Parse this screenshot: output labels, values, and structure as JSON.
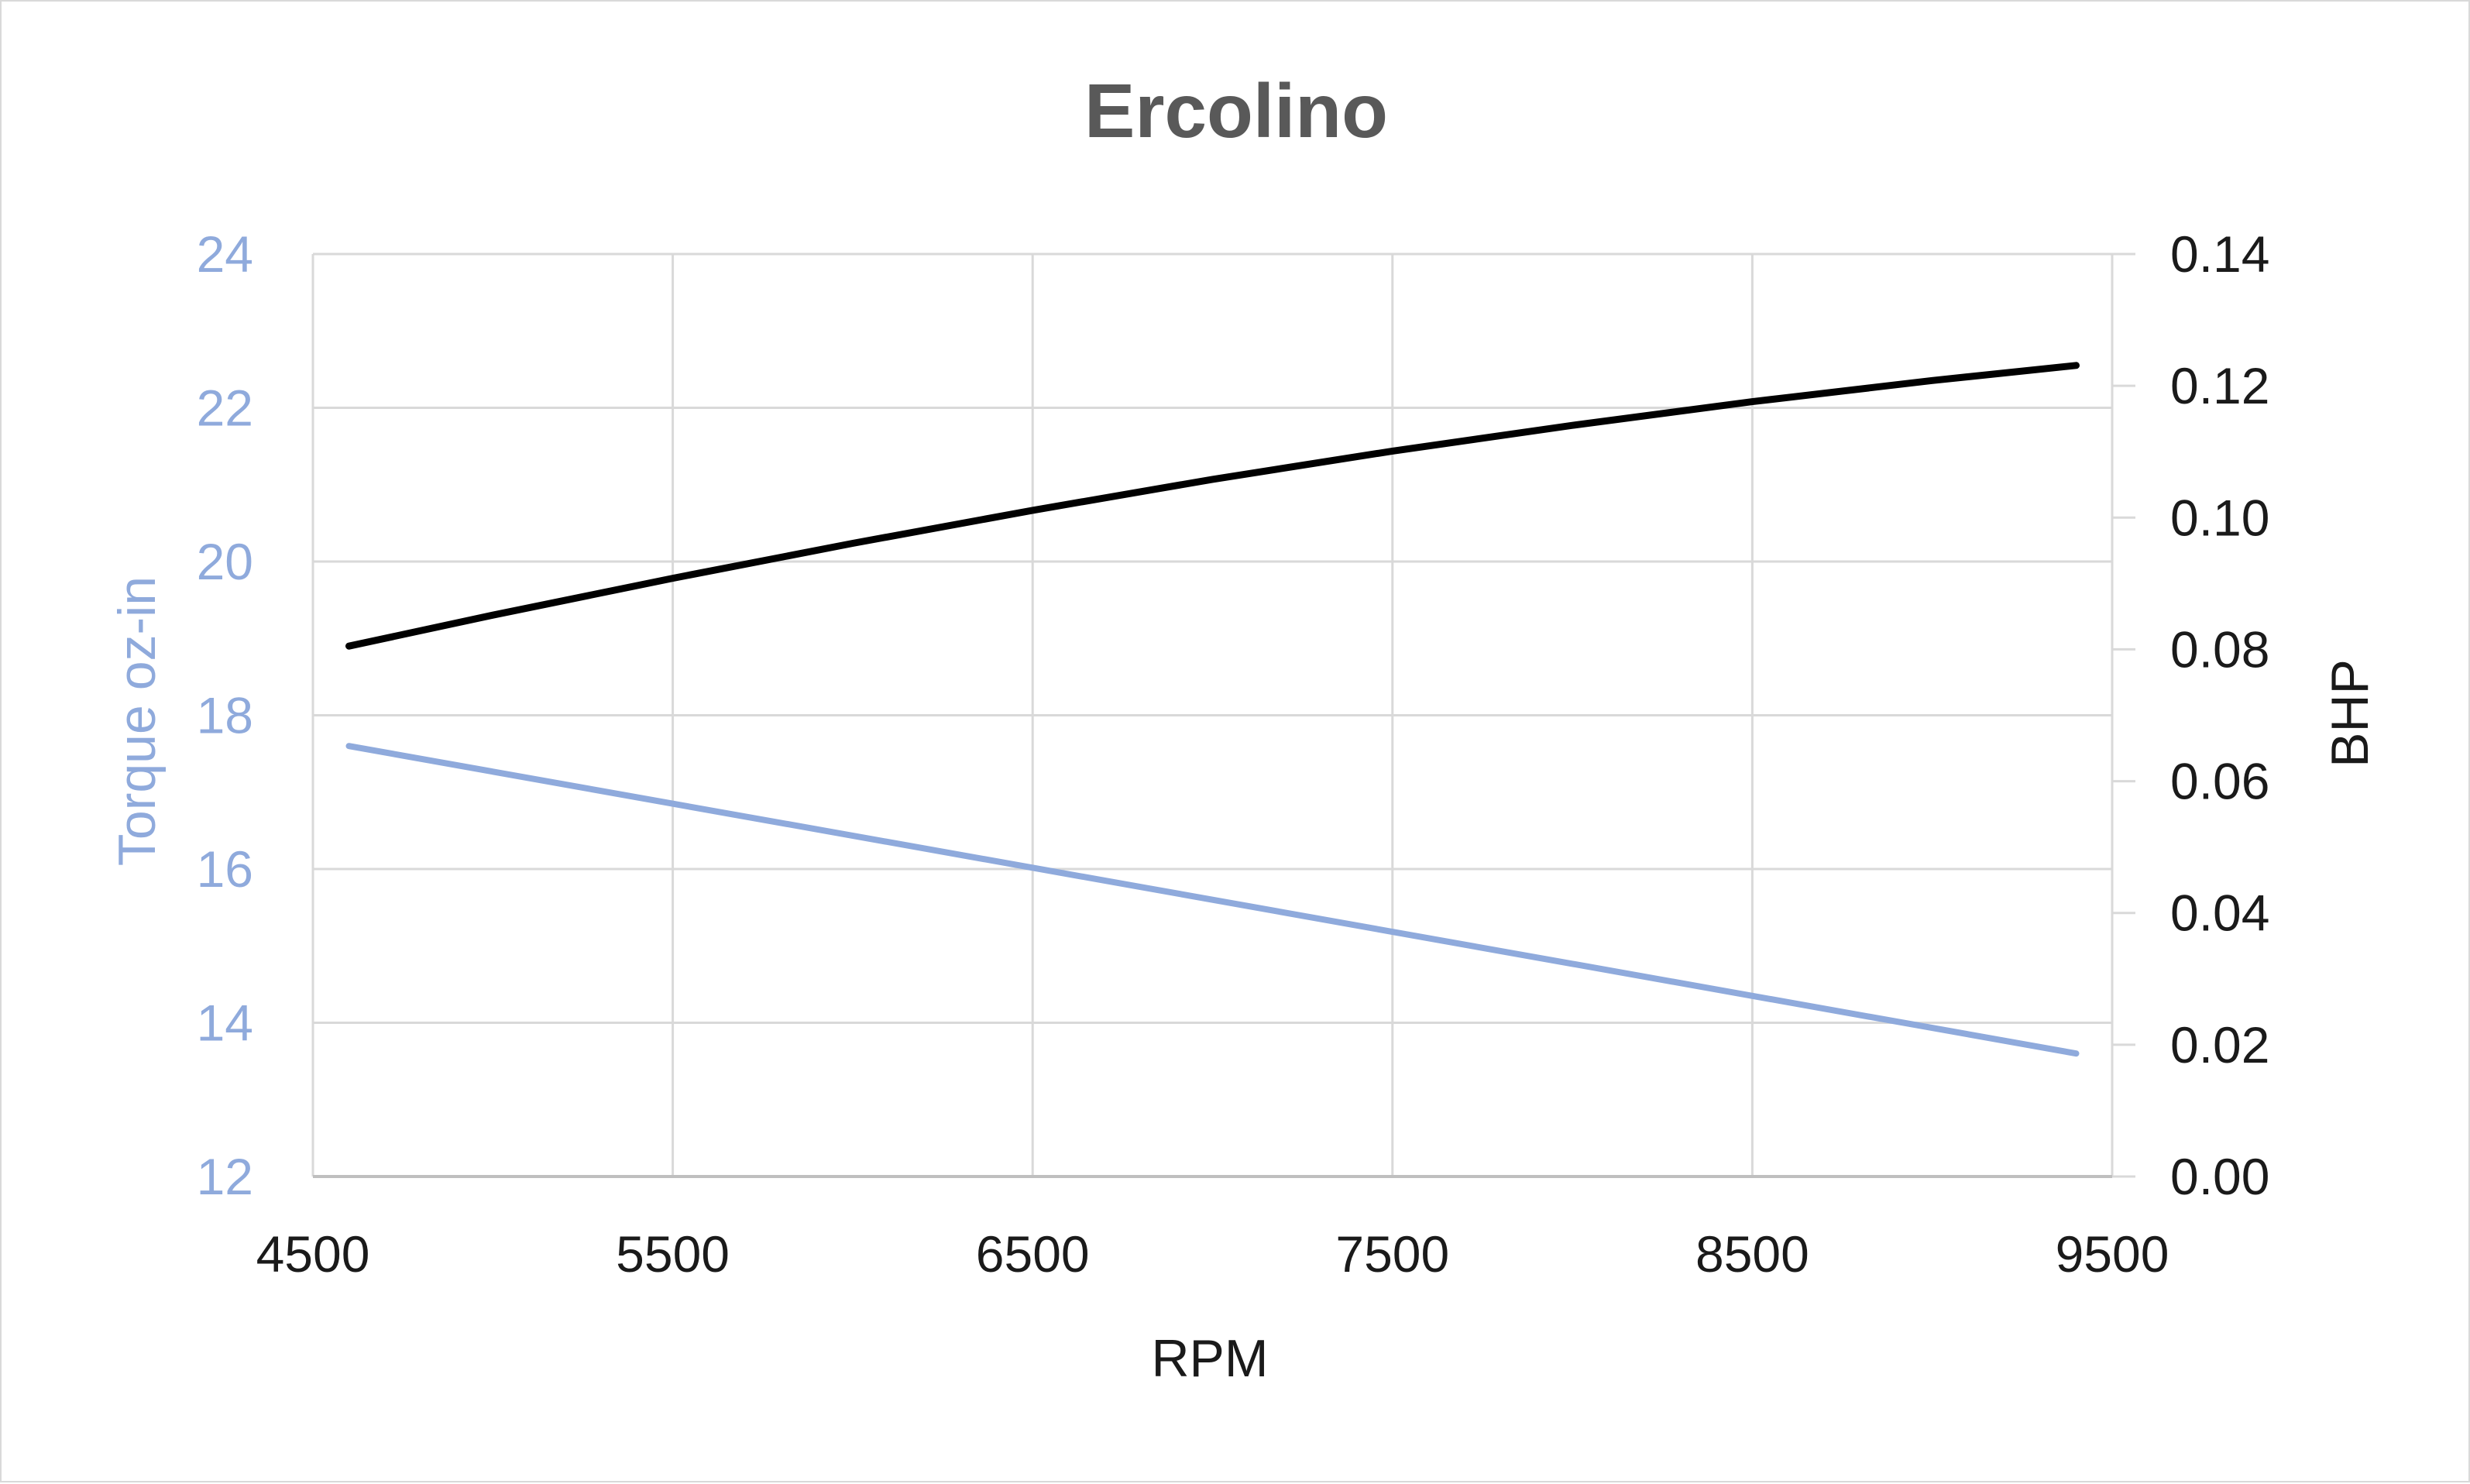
{
  "chart_data": {
    "type": "line",
    "title": "Ercolino",
    "xlabel": "RPM",
    "ylabel_left": "Torque oz-in",
    "ylabel_right": "BHP",
    "xlim": [
      4500,
      9500
    ],
    "ylim_left": [
      12,
      24
    ],
    "ylim_right": [
      0,
      0.14
    ],
    "x_ticks": [
      "4500",
      "5500",
      "6500",
      "7500",
      "8500",
      "9500"
    ],
    "y_left_ticks": [
      "12",
      "14",
      "16",
      "18",
      "20",
      "22",
      "24"
    ],
    "y_right_ticks": [
      "0.00",
      "0.02",
      "0.04",
      "0.06",
      "0.08",
      "0.10",
      "0.12",
      "0.14"
    ],
    "grid": true,
    "series": [
      {
        "axis": "left",
        "color": "#8faadc",
        "x": [
          4600,
          9400
        ],
        "values": [
          17.6,
          13.6
        ]
      },
      {
        "axis": "right",
        "color": "#000000",
        "x": [
          4600,
          5000,
          5500,
          6000,
          6500,
          7000,
          7500,
          8000,
          8500,
          9000,
          9400
        ],
        "values": [
          0.0805,
          0.0852,
          0.0908,
          0.0961,
          0.1011,
          0.1058,
          0.1101,
          0.114,
          0.1176,
          0.1208,
          0.1231
        ]
      }
    ]
  }
}
